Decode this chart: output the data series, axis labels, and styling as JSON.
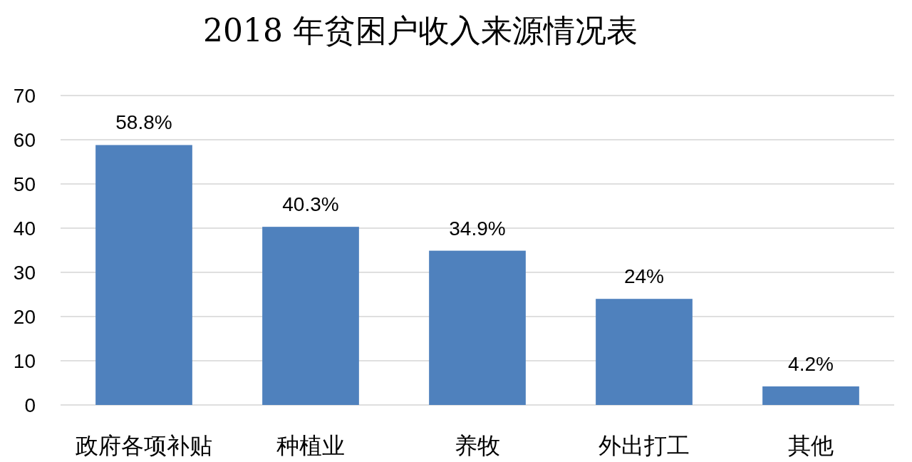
{
  "chart_data": {
    "type": "bar",
    "title": "2018 年贫困户收入来源情况表",
    "categories": [
      "政府各项补贴",
      "种植业",
      "养牧",
      "外出打工",
      "其他"
    ],
    "values": [
      58.8,
      40.3,
      34.9,
      24,
      4.2
    ],
    "value_labels": [
      "58.8%",
      "40.3%",
      "34.9%",
      "24%",
      "4.2%"
    ],
    "color": "#4f81bd",
    "ylim": [
      0,
      70
    ],
    "yticks": [
      0,
      10,
      20,
      30,
      40,
      50,
      60,
      70
    ],
    "grid": "y"
  }
}
